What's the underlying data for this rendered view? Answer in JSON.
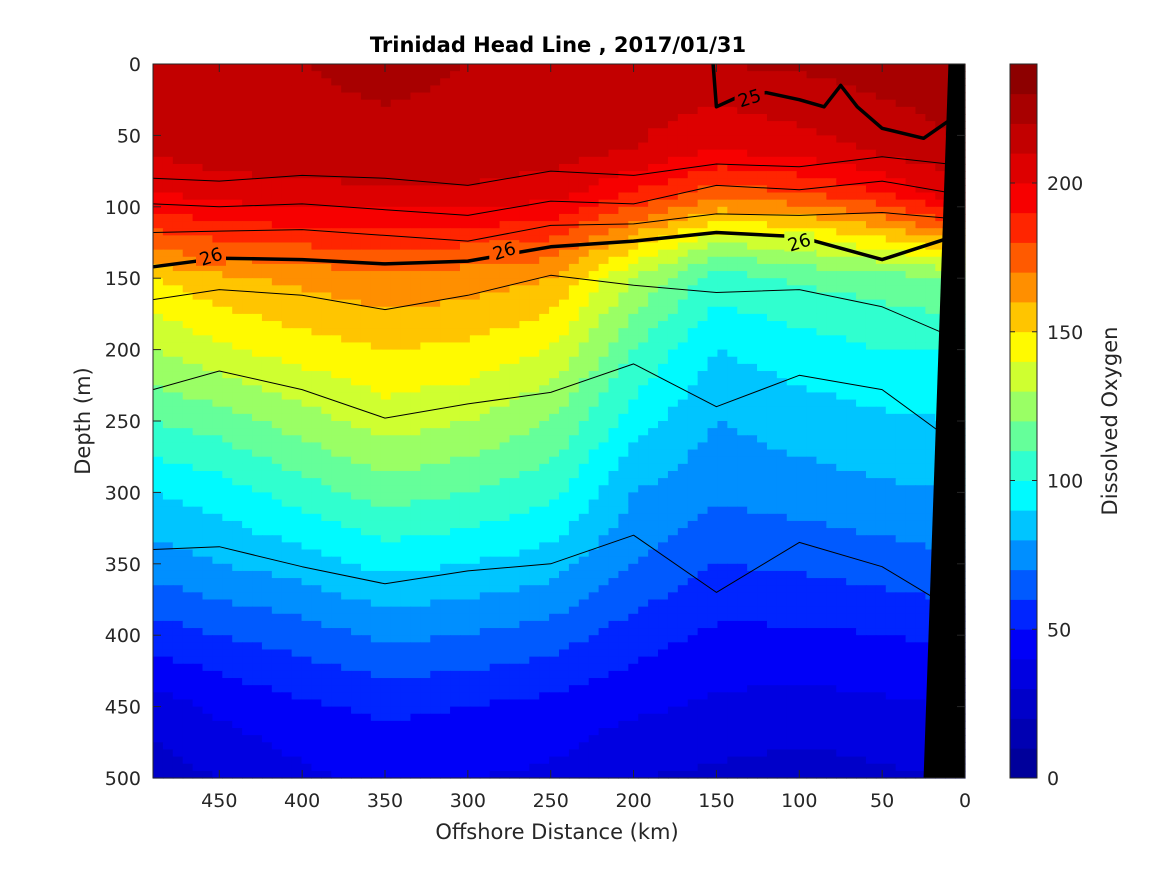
{
  "chart_data": {
    "type": "heatmap",
    "title": "Trinidad Head Line , 2017/01/31",
    "xlabel": "Offshore Distance (km)",
    "ylabel": "Depth (m)",
    "colorbar_label": "Dissolved Oxygen",
    "xlim": [
      490,
      0
    ],
    "ylim": [
      0,
      500
    ],
    "clim": [
      0,
      240
    ],
    "x_reversed": true,
    "y_reversed": true,
    "x_ticks": [
      450,
      400,
      350,
      300,
      250,
      200,
      150,
      100,
      50,
      0
    ],
    "y_ticks": [
      0,
      50,
      100,
      150,
      200,
      250,
      300,
      350,
      400,
      450,
      500
    ],
    "colorbar_ticks": [
      0,
      50,
      100,
      150,
      200
    ],
    "colorbar_levels": 24,
    "colormap": [
      "#00008f",
      "#0000ff",
      "#00ffff",
      "#ffff00",
      "#ff0000",
      "#800000"
    ],
    "density_contour_labels": [
      {
        "text": "25",
        "x": 130,
        "y": 24
      },
      {
        "text": "26",
        "x": 455,
        "y": 135
      },
      {
        "text": "26",
        "x": 278,
        "y": 131
      },
      {
        "text": "26",
        "x": 100,
        "y": 125
      }
    ],
    "distance_km": [
      490,
      450,
      400,
      350,
      300,
      250,
      200,
      150,
      100,
      50,
      10
    ],
    "oxygen_profiles": [
      {
        "x": 490,
        "depth_m": [
          0,
          60,
          90,
          110,
          130,
          150,
          200,
          250,
          300,
          350,
          400,
          450,
          500
        ],
        "oxygen": [
          215,
          212,
          200,
          185,
          170,
          150,
          130,
          110,
          90,
          75,
          55,
          35,
          25
        ]
      },
      {
        "x": 450,
        "depth_m": [
          0,
          60,
          90,
          110,
          130,
          150,
          200,
          250,
          300,
          350,
          400,
          450,
          500
        ],
        "oxygen": [
          218,
          215,
          205,
          190,
          175,
          158,
          138,
          115,
          95,
          80,
          60,
          42,
          30
        ]
      },
      {
        "x": 400,
        "depth_m": [
          0,
          60,
          90,
          110,
          130,
          150,
          200,
          250,
          300,
          350,
          400,
          450,
          500
        ],
        "oxygen": [
          220,
          217,
          207,
          193,
          178,
          163,
          145,
          125,
          105,
          85,
          65,
          48,
          38
        ]
      },
      {
        "x": 350,
        "depth_m": [
          0,
          60,
          90,
          110,
          130,
          150,
          200,
          250,
          300,
          350,
          400,
          450,
          500
        ],
        "oxygen": [
          222,
          218,
          208,
          195,
          180,
          168,
          150,
          135,
          115,
          93,
          72,
          52,
          42
        ]
      },
      {
        "x": 300,
        "depth_m": [
          0,
          60,
          90,
          110,
          130,
          150,
          200,
          250,
          300,
          350,
          400,
          450,
          500
        ],
        "oxygen": [
          220,
          217,
          208,
          193,
          178,
          165,
          148,
          130,
          110,
          90,
          70,
          50,
          40
        ]
      },
      {
        "x": 250,
        "depth_m": [
          0,
          60,
          90,
          110,
          130,
          150,
          200,
          250,
          300,
          350,
          400,
          450,
          500
        ],
        "oxygen": [
          220,
          215,
          205,
          190,
          175,
          160,
          140,
          120,
          103,
          85,
          65,
          47,
          38
        ]
      },
      {
        "x": 200,
        "depth_m": [
          0,
          60,
          90,
          110,
          130,
          150,
          200,
          250,
          300,
          350,
          400,
          450,
          500
        ],
        "oxygen": [
          218,
          210,
          190,
          170,
          150,
          130,
          110,
          95,
          80,
          70,
          55,
          42,
          30
        ]
      },
      {
        "x": 150,
        "depth_m": [
          0,
          60,
          90,
          110,
          130,
          150,
          200,
          250,
          300,
          350,
          400,
          450,
          500
        ],
        "oxygen": [
          220,
          200,
          175,
          150,
          125,
          105,
          90,
          80,
          72,
          60,
          48,
          38,
          28
        ]
      },
      {
        "x": 100,
        "depth_m": [
          0,
          60,
          90,
          110,
          130,
          150,
          200,
          250,
          300,
          350,
          400,
          450,
          500
        ],
        "oxygen": [
          222,
          205,
          180,
          155,
          130,
          112,
          95,
          85,
          75,
          62,
          48,
          36,
          25
        ]
      },
      {
        "x": 50,
        "depth_m": [
          0,
          60,
          90,
          110,
          130,
          150,
          200,
          250,
          300,
          350,
          400,
          450,
          500
        ],
        "oxygen": [
          225,
          212,
          190,
          165,
          140,
          115,
          100,
          88,
          78,
          65,
          50,
          38,
          28
        ]
      },
      {
        "x": 10,
        "depth_m": [
          0,
          60,
          90,
          110,
          130,
          150,
          200,
          250,
          300,
          350,
          400,
          450,
          500
        ],
        "oxygen": [
          228,
          218,
          205,
          180,
          150,
          120,
          100,
          90,
          80,
          68,
          52,
          40,
          30
        ]
      }
    ],
    "sigma_contours": [
      {
        "x": [
          490,
          450,
          400,
          350,
          300,
          250,
          200,
          150,
          100,
          50,
          10
        ],
        "depth_m": [
          80,
          82,
          78,
          80,
          85,
          75,
          78,
          70,
          72,
          65,
          70
        ]
      },
      {
        "x": [
          490,
          450,
          400,
          350,
          300,
          250,
          200,
          150,
          100,
          50,
          10
        ],
        "depth_m": [
          98,
          100,
          98,
          102,
          106,
          96,
          98,
          85,
          88,
          82,
          90
        ]
      },
      {
        "x": [
          490,
          450,
          400,
          350,
          300,
          250,
          200,
          150,
          100,
          50,
          10
        ],
        "depth_m": [
          118,
          117,
          116,
          120,
          124,
          113,
          112,
          105,
          106,
          104,
          108
        ]
      },
      {
        "x": [
          490,
          450,
          400,
          350,
          300,
          250,
          200,
          150,
          100,
          50,
          10
        ],
        "depth_m": [
          142,
          136,
          137,
          140,
          138,
          128,
          124,
          118,
          121,
          137,
          122
        ],
        "bold": true
      },
      {
        "x": [
          490,
          450,
          400,
          350,
          300,
          250,
          200,
          150,
          100,
          50,
          10
        ],
        "depth_m": [
          165,
          158,
          162,
          172,
          162,
          148,
          155,
          160,
          158,
          170,
          190
        ]
      },
      {
        "x": [
          490,
          450,
          400,
          350,
          300,
          250,
          200,
          150,
          100,
          50,
          10
        ],
        "depth_m": [
          228,
          215,
          228,
          248,
          238,
          230,
          210,
          240,
          218,
          228,
          262
        ]
      },
      {
        "x": [
          490,
          450,
          400,
          350,
          300,
          250,
          200,
          150,
          100,
          50,
          10
        ],
        "depth_m": [
          340,
          338,
          352,
          364,
          355,
          350,
          330,
          370,
          335,
          352,
          380
        ]
      }
    ],
    "sigma_25_contour": {
      "x": [
        152,
        150,
        135,
        120,
        100,
        85,
        75,
        65,
        50,
        25,
        10
      ],
      "depth_m": [
        0,
        30,
        22,
        20,
        25,
        30,
        15,
        30,
        45,
        52,
        40
      ]
    },
    "bathymetry": {
      "x": [
        10,
        25
      ],
      "depth_m": [
        0,
        500
      ],
      "fill": "black"
    }
  }
}
